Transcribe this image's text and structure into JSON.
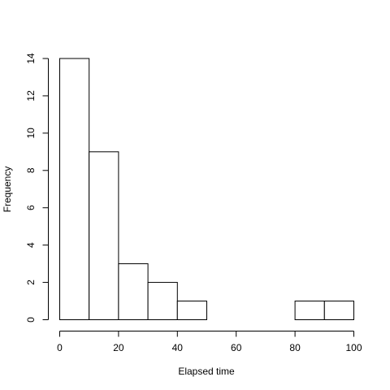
{
  "chart_data": {
    "type": "bar",
    "title": "",
    "xlabel": "Elapsed time",
    "ylabel": "Frequency",
    "xlim": [
      0,
      100
    ],
    "ylim": [
      0,
      14
    ],
    "bins": [
      {
        "from": 0,
        "to": 10,
        "count": 14
      },
      {
        "from": 10,
        "to": 20,
        "count": 9
      },
      {
        "from": 20,
        "to": 30,
        "count": 3
      },
      {
        "from": 30,
        "to": 40,
        "count": 2
      },
      {
        "from": 40,
        "to": 50,
        "count": 1
      },
      {
        "from": 50,
        "to": 60,
        "count": 0
      },
      {
        "from": 60,
        "to": 70,
        "count": 0
      },
      {
        "from": 70,
        "to": 80,
        "count": 0
      },
      {
        "from": 80,
        "to": 90,
        "count": 1
      },
      {
        "from": 90,
        "to": 100,
        "count": 1
      }
    ],
    "x_ticks": [
      "0",
      "20",
      "40",
      "60",
      "80",
      "100"
    ],
    "y_ticks": [
      "0",
      "2",
      "4",
      "6",
      "8",
      "10",
      "12",
      "14"
    ],
    "grid": false,
    "legend": "none",
    "bar_fill": "#ffffff",
    "bar_stroke": "#000000"
  }
}
